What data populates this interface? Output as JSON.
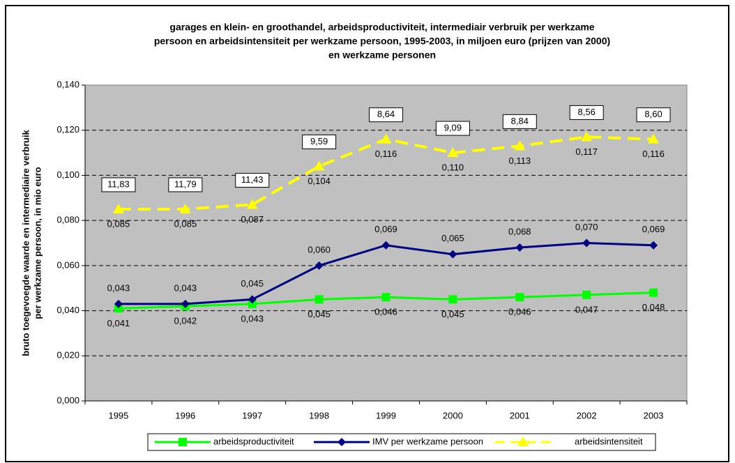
{
  "chart_data": {
    "type": "line",
    "title": [
      "garages en klein- en groothandel, arbeidsproductiviteit, intermediair verbruik per werkzame",
      "persoon en arbeidsintensiteit per werkzame persoon, 1995-2003, in miljoen euro (prijzen van 2000)",
      "en werkzame personen"
    ],
    "ylabel": [
      "bruto toegevoegde waarde en intermediaire verbruik",
      "per werkzame persoon, in mio euro"
    ],
    "categories": [
      "1995",
      "1996",
      "1997",
      "1998",
      "1999",
      "2000",
      "2001",
      "2002",
      "2003"
    ],
    "ylim": [
      0,
      0.14
    ],
    "yticks": [
      {
        "value": 0,
        "label": "0,000"
      },
      {
        "value": 0.02,
        "label": "0,020"
      },
      {
        "value": 0.04,
        "label": "0,040"
      },
      {
        "value": 0.06,
        "label": "0,060"
      },
      {
        "value": 0.08,
        "label": "0,080"
      },
      {
        "value": 0.1,
        "label": "0,100"
      },
      {
        "value": 0.12,
        "label": "0,120"
      },
      {
        "value": 0.14,
        "label": "0,140"
      }
    ],
    "grid": true,
    "legend": "bottom",
    "series": [
      {
        "name": "arbeidsproductiviteit",
        "color": "#00ff00",
        "marker": "square",
        "dashed": false,
        "label_side": "below",
        "values": [
          0.041,
          0.042,
          0.043,
          0.045,
          0.046,
          0.045,
          0.046,
          0.047,
          0.048
        ],
        "value_labels": [
          "0,041",
          "0,042",
          "0,043",
          "0,045",
          "0,046",
          "0,045",
          "0,046",
          "0,047",
          "0,048"
        ]
      },
      {
        "name": "IMV per werkzame persoon",
        "color": "#000080",
        "marker": "diamond",
        "dashed": false,
        "label_side": "above",
        "values": [
          0.043,
          0.043,
          0.045,
          0.06,
          0.069,
          0.065,
          0.068,
          0.07,
          0.069
        ],
        "value_labels": [
          "0,043",
          "0,043",
          "0,045",
          "0,060",
          "0,069",
          "0,065",
          "0,068",
          "0,070",
          "0,069"
        ]
      },
      {
        "name": "arbeidsintensiteit",
        "color": "#ffff00",
        "marker": "triangle",
        "dashed": true,
        "label_side": "below",
        "values": [
          0.085,
          0.085,
          0.087,
          0.104,
          0.116,
          0.11,
          0.113,
          0.117,
          0.116
        ],
        "value_labels": [
          "0,085",
          "0,085",
          "0,087",
          "0,104",
          "0,116",
          "0,110",
          "0,113",
          "0,117",
          "0,116"
        ],
        "box_values": [
          11.83,
          11.79,
          11.43,
          9.59,
          8.64,
          9.09,
          8.84,
          8.56,
          8.6
        ],
        "box_labels": [
          "11,83",
          "11,79",
          "11,43",
          "9,59",
          "8,64",
          "9,09",
          "8,84",
          "8,56",
          "8,60"
        ]
      }
    ]
  }
}
